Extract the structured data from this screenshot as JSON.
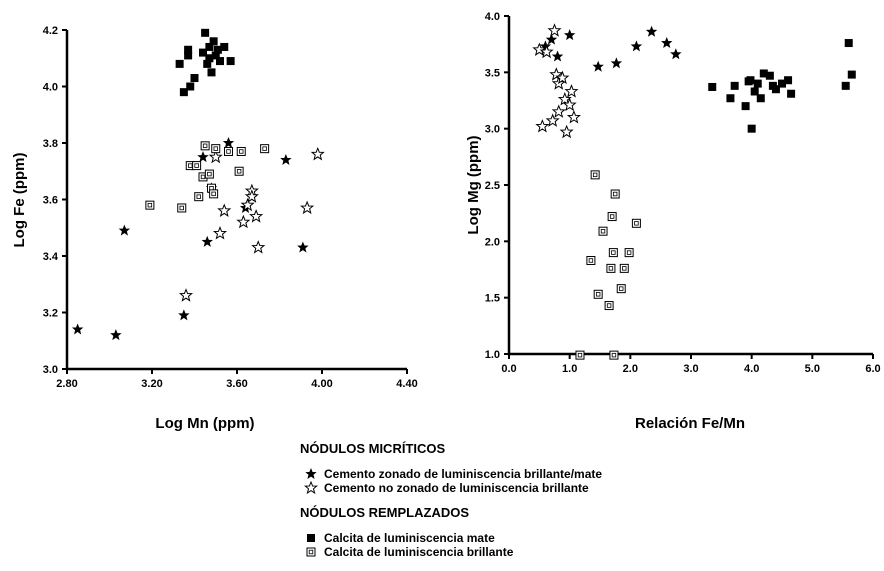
{
  "legend": {
    "group1_heading": "NÓDULOS MICRÍTICOS",
    "group1_items": [
      "Cemento zonado de luminiscencia brillante/mate",
      "Cemento no zonado de luminiscencia brillante"
    ],
    "group2_heading": "NÓDULOS REMPLAZADOS",
    "group2_items": [
      "Calcita de luminiscencia mate",
      "Calcita de luminiscencia brillante"
    ]
  },
  "chart_data": [
    {
      "type": "scatter",
      "title": "",
      "xlabel": "Log Mn (ppm)",
      "ylabel": "Log Fe (ppm)",
      "xlim": [
        2.8,
        4.4
      ],
      "ylim": [
        3.0,
        4.2
      ],
      "xticks": [
        "2.80",
        "3.20",
        "3.60",
        "4.00",
        "4.40"
      ],
      "yticks": [
        "3.0",
        "3.2",
        "3.4",
        "3.6",
        "3.8",
        "4.0",
        "4.2"
      ],
      "grid": false,
      "series": [
        {
          "name": "Cemento zonado de luminiscencia brillante/mate",
          "marker": "filled-star",
          "x": [
            2.85,
            3.03,
            3.07,
            3.35,
            3.44,
            3.46,
            3.48,
            3.56,
            3.64,
            3.83,
            3.91
          ],
          "y": [
            3.14,
            3.12,
            3.49,
            3.19,
            3.75,
            3.45,
            3.64,
            3.8,
            3.57,
            3.74,
            3.43
          ]
        },
        {
          "name": "Cemento no zonado de luminiscencia brillante",
          "marker": "open-star",
          "x": [
            3.36,
            3.5,
            3.52,
            3.54,
            3.63,
            3.65,
            3.67,
            3.67,
            3.69,
            3.7,
            3.93,
            3.98
          ],
          "y": [
            3.26,
            3.75,
            3.48,
            3.56,
            3.52,
            3.58,
            3.63,
            3.61,
            3.54,
            3.43,
            3.57,
            3.76
          ]
        },
        {
          "name": "Calcita de luminiscencia mate",
          "marker": "filled-square",
          "x": [
            3.33,
            3.35,
            3.37,
            3.38,
            3.4,
            3.44,
            3.45,
            3.46,
            3.47,
            3.47,
            3.48,
            3.49,
            3.5,
            3.51,
            3.52,
            3.54,
            3.57,
            3.37
          ],
          "y": [
            4.08,
            3.98,
            4.13,
            4.0,
            4.03,
            4.12,
            4.19,
            4.08,
            4.14,
            4.1,
            4.05,
            4.16,
            4.11,
            4.13,
            4.09,
            4.14,
            4.09,
            4.11
          ]
        },
        {
          "name": "Calcita de luminiscencia brillante",
          "marker": "open-square",
          "x": [
            3.19,
            3.34,
            3.38,
            3.41,
            3.42,
            3.44,
            3.45,
            3.47,
            3.48,
            3.49,
            3.5,
            3.56,
            3.61,
            3.62,
            3.73
          ],
          "y": [
            3.58,
            3.57,
            3.72,
            3.72,
            3.61,
            3.68,
            3.79,
            3.69,
            3.64,
            3.62,
            3.78,
            3.77,
            3.7,
            3.77,
            3.78
          ]
        }
      ]
    },
    {
      "type": "scatter",
      "title": "",
      "xlabel": "Relación Fe/Mn",
      "ylabel": "Log Mg (ppm)",
      "xlim": [
        0,
        6
      ],
      "ylim": [
        1.0,
        4.0
      ],
      "xticks": [
        "0.0",
        "1.0",
        "2.0",
        "3.0",
        "4.0",
        "5.0",
        "6.0"
      ],
      "yticks": [
        "1.0",
        "1.5",
        "2.0",
        "2.5",
        "3.0",
        "3.5",
        "4.0"
      ],
      "grid": false,
      "series": [
        {
          "name": "Cemento zonado de luminiscencia brillante/mate",
          "marker": "filled-star",
          "x": [
            0.7,
            0.8,
            1.0,
            1.47,
            1.77,
            2.1,
            2.35,
            2.6,
            2.75
          ],
          "y": [
            3.79,
            3.64,
            3.83,
            3.55,
            3.58,
            3.73,
            3.86,
            3.76,
            3.66
          ],
          "note_extra_x": [
            0.6
          ],
          "note_extra_y": [
            3.73
          ]
        },
        {
          "name": "Cemento no zonado de luminiscencia brillante",
          "marker": "open-star",
          "x": [
            0.5,
            0.62,
            0.75,
            0.78,
            0.82,
            0.88,
            0.92,
            0.95,
            1.0,
            1.03,
            1.07,
            0.72,
            0.55,
            0.82
          ],
          "y": [
            3.7,
            3.68,
            3.87,
            3.48,
            3.4,
            3.45,
            3.26,
            2.97,
            3.21,
            3.33,
            3.1,
            3.07,
            3.02,
            3.15
          ]
        },
        {
          "name": "Calcita de luminiscencia mate",
          "marker": "filled-square",
          "x": [
            3.35,
            3.65,
            3.72,
            3.9,
            3.95,
            4.0,
            4.05,
            4.1,
            4.15,
            4.3,
            4.35,
            4.4,
            4.5,
            4.6,
            4.65,
            5.55,
            5.6,
            5.65,
            3.98,
            4.2
          ],
          "y": [
            3.37,
            3.27,
            3.38,
            3.2,
            3.42,
            3.0,
            3.33,
            3.4,
            3.27,
            3.47,
            3.38,
            3.35,
            3.4,
            3.43,
            3.31,
            3.38,
            3.76,
            3.48,
            3.43,
            3.49
          ]
        },
        {
          "name": "Calcita de luminiscencia brillante",
          "marker": "open-square",
          "x": [
            1.17,
            1.35,
            1.42,
            1.47,
            1.55,
            1.65,
            1.7,
            1.72,
            1.73,
            1.75,
            1.85,
            1.9,
            1.98,
            2.1,
            1.68
          ],
          "y": [
            0.99,
            1.83,
            2.59,
            1.53,
            2.09,
            1.43,
            2.22,
            1.9,
            0.99,
            2.42,
            1.58,
            1.76,
            1.9,
            2.16,
            1.76
          ]
        }
      ]
    }
  ]
}
